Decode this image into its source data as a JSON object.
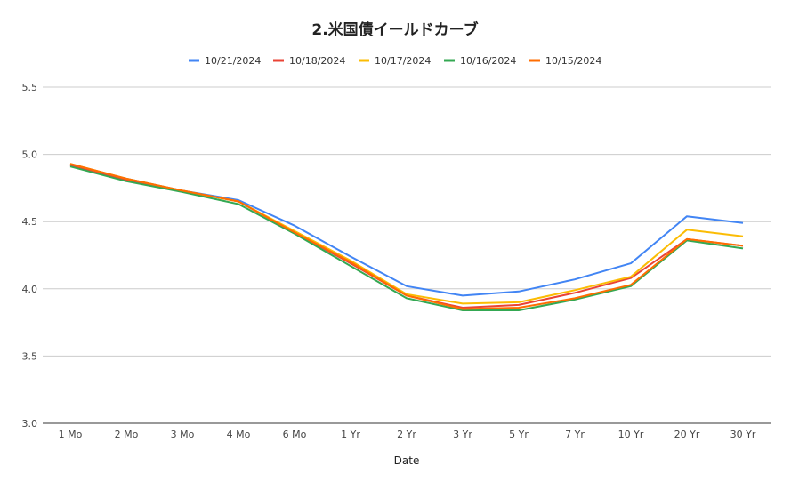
{
  "chart_data": {
    "type": "line",
    "title": "2.米国債イールドカーブ",
    "xlabel": "Date",
    "ylabel": "",
    "ylim": [
      3.0,
      5.5
    ],
    "yticks": [
      "3.0",
      "3.5",
      "4.0",
      "4.5",
      "5.0",
      "5.5"
    ],
    "grid": true,
    "legend_position": "top",
    "categories": [
      "1 Mo",
      "2 Mo",
      "3 Mo",
      "4 Mo",
      "6 Mo",
      "1 Yr",
      "2 Yr",
      "3 Yr",
      "5 Yr",
      "7 Yr",
      "10 Yr",
      "20 Yr",
      "30 Yr"
    ],
    "series": [
      {
        "name": "10/21/2024",
        "color": "#4285F4",
        "values": [
          4.92,
          4.82,
          4.73,
          4.66,
          4.47,
          4.24,
          4.02,
          3.95,
          3.98,
          4.07,
          4.19,
          4.54,
          4.49
        ]
      },
      {
        "name": "10/18/2024",
        "color": "#EA4335",
        "values": [
          4.92,
          4.81,
          4.73,
          4.65,
          4.42,
          4.19,
          3.95,
          3.86,
          3.88,
          3.97,
          4.08,
          4.37,
          4.32
        ]
      },
      {
        "name": "10/17/2024",
        "color": "#FBBC04",
        "values": [
          4.93,
          4.82,
          4.73,
          4.65,
          4.43,
          4.21,
          3.96,
          3.89,
          3.9,
          3.99,
          4.09,
          4.44,
          4.39
        ]
      },
      {
        "name": "10/16/2024",
        "color": "#34A853",
        "values": [
          4.91,
          4.8,
          4.72,
          4.63,
          4.41,
          4.17,
          3.93,
          3.84,
          3.84,
          3.92,
          4.02,
          4.36,
          4.3
        ]
      },
      {
        "name": "10/15/2024",
        "color": "#FF6D01",
        "values": [
          4.93,
          4.82,
          4.73,
          4.65,
          4.42,
          4.2,
          3.95,
          3.85,
          3.86,
          3.93,
          4.03,
          4.37,
          4.32
        ]
      }
    ]
  }
}
